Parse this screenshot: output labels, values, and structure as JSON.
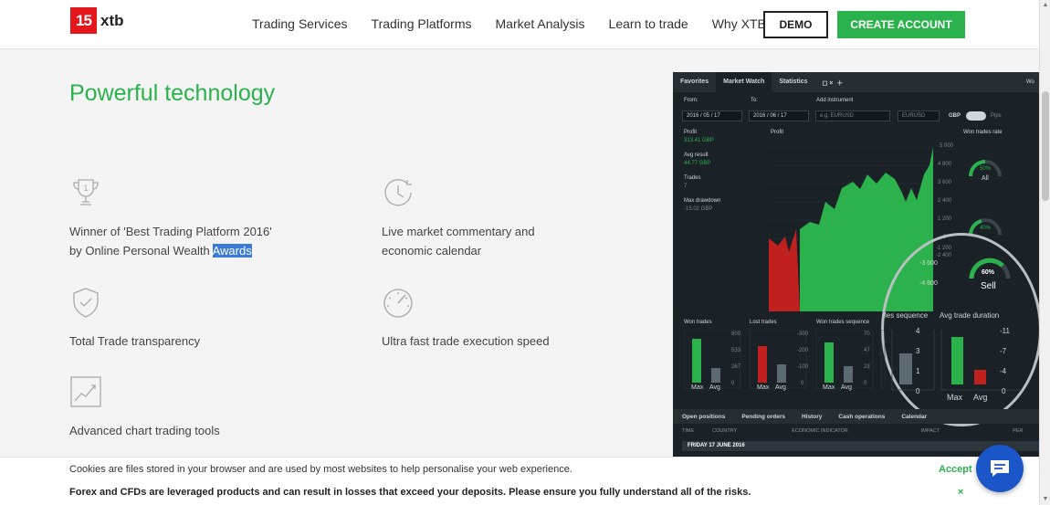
{
  "brand": {
    "logo_mark": "15",
    "logo_text": "xtb",
    "accent": "#2bb24c",
    "logo_color": "#e3161b"
  },
  "nav": {
    "items": [
      {
        "label": "Trading Services"
      },
      {
        "label": "Trading Platforms"
      },
      {
        "label": "Market Analysis"
      },
      {
        "label": "Learn to trade"
      },
      {
        "label": "Why XTB"
      }
    ],
    "demo_label": "DEMO",
    "create_label": "CREATE ACCOUNT"
  },
  "section": {
    "title": "Powerful technology",
    "features": [
      {
        "icon": "trophy-icon",
        "line1": "Winner of 'Best Trading Platform 2016'",
        "line2_prefix": "by Online Personal Wealth ",
        "line2_highlight": "Awards"
      },
      {
        "icon": "clock-icon",
        "line1": "Live market commentary and",
        "line2": "economic calendar"
      },
      {
        "icon": "shield-check-icon",
        "line1": "Total Trade transparency"
      },
      {
        "icon": "speedometer-icon",
        "line1": "Ultra fast trade execution speed"
      },
      {
        "icon": "chart-trend-icon",
        "line1": "Advanced chart trading tools"
      }
    ]
  },
  "platform": {
    "tabs": [
      "Favorites",
      "Market Watch",
      "Statistics"
    ],
    "from_label": "From:",
    "from_value": "2016 / 05 / 17",
    "to_label": "To:",
    "to_value": "2016 / 06 / 17",
    "add_instrument_label": "Add instrument",
    "add_instrument_placeholder": "e.g. EURUSD",
    "instrument_value": "EURUSD",
    "currency": "GBP",
    "pips_label": "Pips",
    "stats": [
      {
        "label": "Profit",
        "value": "313.41 GBP"
      },
      {
        "label": "Avg result",
        "value": "44.77 GBP"
      },
      {
        "label": "Trades",
        "value": "7"
      },
      {
        "label": "Max drawdown",
        "value": "-15.02 GBP"
      }
    ],
    "profit_chart_title": "Profit",
    "profit_axis": [
      "5 000",
      "4 800",
      "3 600",
      "2 400",
      "1 200",
      "0",
      "-1 200",
      "-2 400",
      "-3 600",
      "-4 800"
    ],
    "won_trades_rate_title": "Won trades rate",
    "gauge_all_value": "50%",
    "gauge_all_label": "All",
    "gauge_mid_value": "40%",
    "gauge_sell_value": "60%",
    "gauge_sell_label": "Sell",
    "mini_charts": [
      {
        "title": "Won trades",
        "axis": [
          "800",
          "533",
          "267",
          "0"
        ]
      },
      {
        "title": "Lost trades",
        "axis": [
          "-300",
          "-200",
          "-100",
          "0"
        ]
      },
      {
        "title": "Won trades sequence",
        "axis": [
          "70",
          "47",
          "23",
          "0"
        ]
      },
      {
        "title": "les sequence",
        "axis": [
          "4",
          "3",
          "1",
          "0"
        ]
      },
      {
        "title": "Avg trade duration",
        "axis": [
          "-11",
          "-7",
          "-4",
          "0"
        ]
      }
    ],
    "max_label": "Max",
    "avg_label": "Avg",
    "bottom_tabs": [
      "Open positions",
      "Pending orders",
      "History",
      "Cash operations",
      "Calendar"
    ],
    "calendar_head": [
      "TIME",
      "COUNTRY",
      "ECONOMIC INDICATOR",
      "IMPACT",
      "PER"
    ],
    "calendar_day": "FRIDAY    17 JUNE 2016",
    "partial_right_tab": "Wo"
  },
  "cookie": {
    "message": "Cookies are files stored in your browser and are used by most websites to help personalise your web experience.",
    "accept_label": "Accept"
  },
  "risk": {
    "message": "Forex and CFDs are leveraged products and can result in losses that exceed your deposits. Please ensure you fully understand all of the risks.",
    "close_glyph": "×"
  }
}
